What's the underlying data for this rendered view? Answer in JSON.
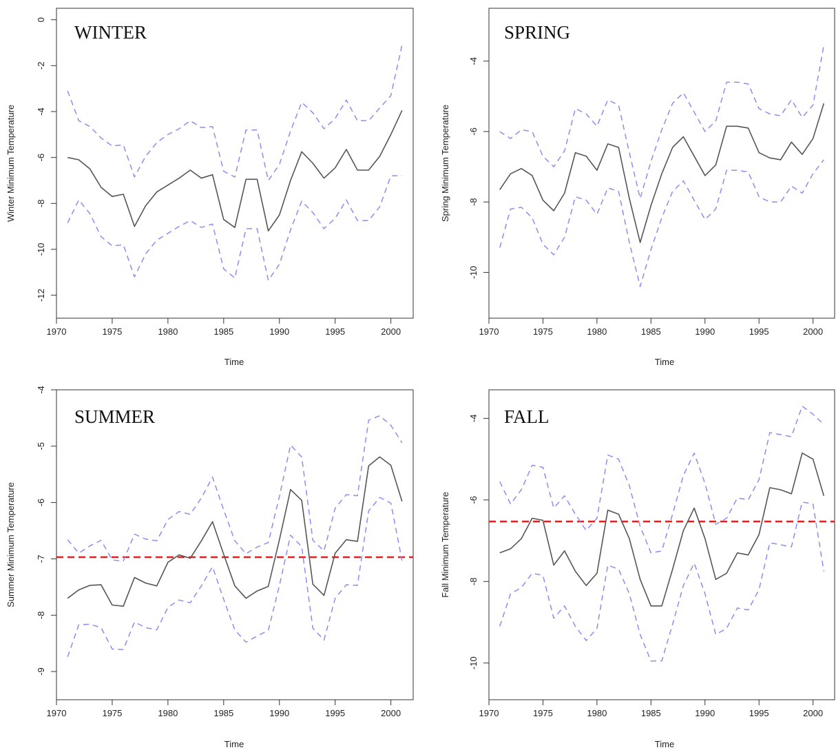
{
  "colors": {
    "mean_line": "#555555",
    "bounds": "#8c8cf0",
    "reference_line": "#e02020",
    "axis": "#333333"
  },
  "chart_data": [
    {
      "type": "line",
      "panel_label": "WINTER",
      "xlabel": "Time",
      "ylabel": "Winter Minimum Temperature",
      "xlim": [
        1970,
        2002
      ],
      "ylim": [
        -13,
        0.5
      ],
      "xticks": [
        1970,
        1975,
        1980,
        1985,
        1990,
        1995,
        2000
      ],
      "yticks": [
        0,
        -2,
        -4,
        -6,
        -8,
        -10,
        -12
      ],
      "x": [
        1971,
        1972,
        1973,
        1974,
        1975,
        1976,
        1977,
        1978,
        1979,
        1980,
        1981,
        1982,
        1983,
        1984,
        1985,
        1986,
        1987,
        1988,
        1989,
        1990,
        1991,
        1992,
        1993,
        1994,
        1995,
        1996,
        1997,
        1998,
        1999,
        2000,
        2001
      ],
      "series": [
        {
          "role": "mean",
          "values": [
            -6.0,
            -6.1,
            -6.5,
            -7.3,
            -7.7,
            -7.6,
            -9.0,
            -8.1,
            -7.5,
            -7.2,
            -6.9,
            -6.55,
            -6.9,
            -6.75,
            -8.7,
            -9.05,
            -6.95,
            -6.95,
            -9.2,
            -8.5,
            -7.0,
            -5.75,
            -6.25,
            -6.9,
            -6.45,
            -5.65,
            -6.55,
            -6.55,
            -5.95,
            -5.0,
            -3.95
          ]
        },
        {
          "role": "upper",
          "values": [
            -3.1,
            -4.4,
            -4.65,
            -5.15,
            -5.5,
            -5.45,
            -6.85,
            -5.95,
            -5.35,
            -5.0,
            -4.75,
            -4.4,
            -4.7,
            -4.65,
            -6.6,
            -6.85,
            -4.8,
            -4.8,
            -7.0,
            -6.3,
            -4.85,
            -3.6,
            -4.05,
            -4.75,
            -4.3,
            -3.5,
            -4.4,
            -4.4,
            -3.85,
            -3.3,
            -1.1
          ]
        },
        {
          "role": "lower",
          "values": [
            -8.85,
            -7.85,
            -8.45,
            -9.45,
            -9.85,
            -9.8,
            -11.2,
            -10.2,
            -9.6,
            -9.3,
            -9.0,
            -8.75,
            -9.05,
            -8.9,
            -10.85,
            -11.25,
            -9.1,
            -9.1,
            -11.35,
            -10.65,
            -9.15,
            -7.9,
            -8.4,
            -9.1,
            -8.65,
            -7.85,
            -8.75,
            -8.75,
            -8.15,
            -6.8,
            -6.8
          ]
        }
      ]
    },
    {
      "type": "line",
      "panel_label": "SPRING",
      "xlabel": "Time",
      "ylabel": "Spring Minimum Temperature",
      "xlim": [
        1970,
        2002
      ],
      "ylim": [
        -11.3,
        -2.5
      ],
      "xticks": [
        1970,
        1975,
        1980,
        1985,
        1990,
        1995,
        2000
      ],
      "yticks": [
        -4,
        -6,
        -8,
        -10
      ],
      "x": [
        1971,
        1972,
        1973,
        1974,
        1975,
        1976,
        1977,
        1978,
        1979,
        1980,
        1981,
        1982,
        1983,
        1984,
        1985,
        1986,
        1987,
        1988,
        1989,
        1990,
        1991,
        1992,
        1993,
        1994,
        1995,
        1996,
        1997,
        1998,
        1999,
        2000,
        2001
      ],
      "series": [
        {
          "role": "mean",
          "values": [
            -7.65,
            -7.2,
            -7.05,
            -7.25,
            -7.95,
            -8.25,
            -7.75,
            -6.6,
            -6.7,
            -7.1,
            -6.35,
            -6.45,
            -7.9,
            -9.15,
            -8.1,
            -7.2,
            -6.45,
            -6.15,
            -6.7,
            -7.25,
            -6.95,
            -5.85,
            -5.85,
            -5.9,
            -6.6,
            -6.75,
            -6.8,
            -6.3,
            -6.65,
            -6.2,
            -5.2
          ]
        },
        {
          "role": "upper",
          "values": [
            -6.0,
            -6.2,
            -5.95,
            -6.0,
            -6.7,
            -7.0,
            -6.55,
            -5.35,
            -5.5,
            -5.85,
            -5.1,
            -5.25,
            -6.6,
            -7.9,
            -6.85,
            -5.95,
            -5.2,
            -4.9,
            -5.45,
            -6.0,
            -5.7,
            -4.6,
            -4.6,
            -4.65,
            -5.35,
            -5.5,
            -5.55,
            -5.1,
            -5.6,
            -5.25,
            -3.55
          ]
        },
        {
          "role": "lower",
          "values": [
            -9.3,
            -8.2,
            -8.15,
            -8.45,
            -9.2,
            -9.5,
            -9.0,
            -7.85,
            -7.95,
            -8.35,
            -7.6,
            -7.7,
            -9.15,
            -10.4,
            -9.35,
            -8.45,
            -7.7,
            -7.4,
            -7.95,
            -8.5,
            -8.2,
            -7.1,
            -7.1,
            -7.15,
            -7.85,
            -8.0,
            -8.0,
            -7.55,
            -7.75,
            -7.2,
            -6.8
          ]
        }
      ]
    },
    {
      "type": "line",
      "panel_label": "SUMMER",
      "xlabel": "Time",
      "ylabel": "Summer Minimum Temperature",
      "xlim": [
        1970,
        2002
      ],
      "ylim": [
        -9.5,
        -4.0
      ],
      "xticks": [
        1970,
        1975,
        1980,
        1985,
        1990,
        1995,
        2000
      ],
      "yticks": [
        -4,
        -5,
        -6,
        -7,
        -8,
        -9
      ],
      "reference_line": -6.97,
      "x": [
        1971,
        1972,
        1973,
        1974,
        1975,
        1976,
        1977,
        1978,
        1979,
        1980,
        1981,
        1982,
        1983,
        1984,
        1985,
        1986,
        1987,
        1988,
        1989,
        1990,
        1991,
        1992,
        1993,
        1994,
        1995,
        1996,
        1997,
        1998,
        1999,
        2000,
        2001
      ],
      "series": [
        {
          "role": "mean",
          "values": [
            -7.7,
            -7.55,
            -7.47,
            -7.46,
            -7.82,
            -7.84,
            -7.33,
            -7.43,
            -7.48,
            -7.06,
            -6.93,
            -6.99,
            -6.68,
            -6.34,
            -6.92,
            -7.48,
            -7.7,
            -7.57,
            -7.49,
            -6.66,
            -5.77,
            -5.96,
            -7.45,
            -7.65,
            -6.9,
            -6.66,
            -6.69,
            -5.35,
            -5.19,
            -5.34,
            -5.98
          ]
        },
        {
          "role": "upper",
          "values": [
            -6.66,
            -6.9,
            -6.77,
            -6.67,
            -7.02,
            -7.04,
            -6.56,
            -6.65,
            -6.68,
            -6.3,
            -6.16,
            -6.21,
            -5.92,
            -5.55,
            -6.13,
            -6.68,
            -6.91,
            -6.79,
            -6.71,
            -5.89,
            -4.98,
            -5.19,
            -6.67,
            -6.86,
            -6.1,
            -5.86,
            -5.88,
            -4.54,
            -4.46,
            -4.63,
            -4.94
          ]
        },
        {
          "role": "lower",
          "values": [
            -8.74,
            -8.17,
            -8.16,
            -8.22,
            -8.6,
            -8.61,
            -8.12,
            -8.22,
            -8.26,
            -7.86,
            -7.73,
            -7.78,
            -7.48,
            -7.14,
            -7.72,
            -8.26,
            -8.48,
            -8.37,
            -8.27,
            -7.47,
            -6.58,
            -6.78,
            -8.23,
            -8.44,
            -7.7,
            -7.46,
            -7.47,
            -6.15,
            -5.91,
            -6.01,
            -7.03
          ]
        }
      ]
    },
    {
      "type": "line",
      "panel_label": "FALL",
      "xlabel": "Time",
      "ylabel": "Fall Minimum Temperature",
      "xlim": [
        1970,
        2002
      ],
      "ylim": [
        -10.9,
        -3.3
      ],
      "xticks": [
        1970,
        1975,
        1980,
        1985,
        1990,
        1995,
        2000
      ],
      "yticks": [
        -4,
        -6,
        -8,
        -10
      ],
      "reference_line": -6.53,
      "x": [
        1971,
        1972,
        1973,
        1974,
        1975,
        1976,
        1977,
        1978,
        1979,
        1980,
        1981,
        1982,
        1983,
        1984,
        1985,
        1986,
        1987,
        1988,
        1989,
        1990,
        1991,
        1992,
        1993,
        1994,
        1995,
        1996,
        1997,
        1998,
        1999,
        2000,
        2001
      ],
      "series": [
        {
          "role": "mean",
          "values": [
            -7.3,
            -7.2,
            -6.95,
            -6.45,
            -6.5,
            -7.6,
            -7.25,
            -7.75,
            -8.1,
            -7.8,
            -6.25,
            -6.35,
            -6.95,
            -7.95,
            -8.6,
            -8.6,
            -7.7,
            -6.75,
            -6.2,
            -6.95,
            -7.95,
            -7.8,
            -7.3,
            -7.35,
            -6.85,
            -5.7,
            -5.75,
            -5.85,
            -4.85,
            -5.0,
            -5.9
          ]
        },
        {
          "role": "upper",
          "values": [
            -5.55,
            -6.1,
            -5.75,
            -5.15,
            -5.2,
            -6.2,
            -5.9,
            -6.35,
            -6.75,
            -6.45,
            -4.9,
            -5.0,
            -5.65,
            -6.65,
            -7.3,
            -7.25,
            -6.35,
            -5.4,
            -4.85,
            -5.6,
            -6.6,
            -6.45,
            -5.95,
            -6.0,
            -5.5,
            -4.35,
            -4.4,
            -4.45,
            -3.7,
            -3.9,
            -4.15
          ]
        },
        {
          "role": "lower",
          "values": [
            -9.1,
            -8.3,
            -8.15,
            -7.8,
            -7.85,
            -8.9,
            -8.6,
            -9.1,
            -9.45,
            -9.15,
            -7.6,
            -7.7,
            -8.3,
            -9.3,
            -9.95,
            -9.95,
            -9.05,
            -8.1,
            -7.55,
            -8.3,
            -9.3,
            -9.15,
            -8.65,
            -8.7,
            -8.2,
            -7.05,
            -7.1,
            -7.15,
            -6.05,
            -6.1,
            -7.75
          ]
        }
      ]
    }
  ]
}
